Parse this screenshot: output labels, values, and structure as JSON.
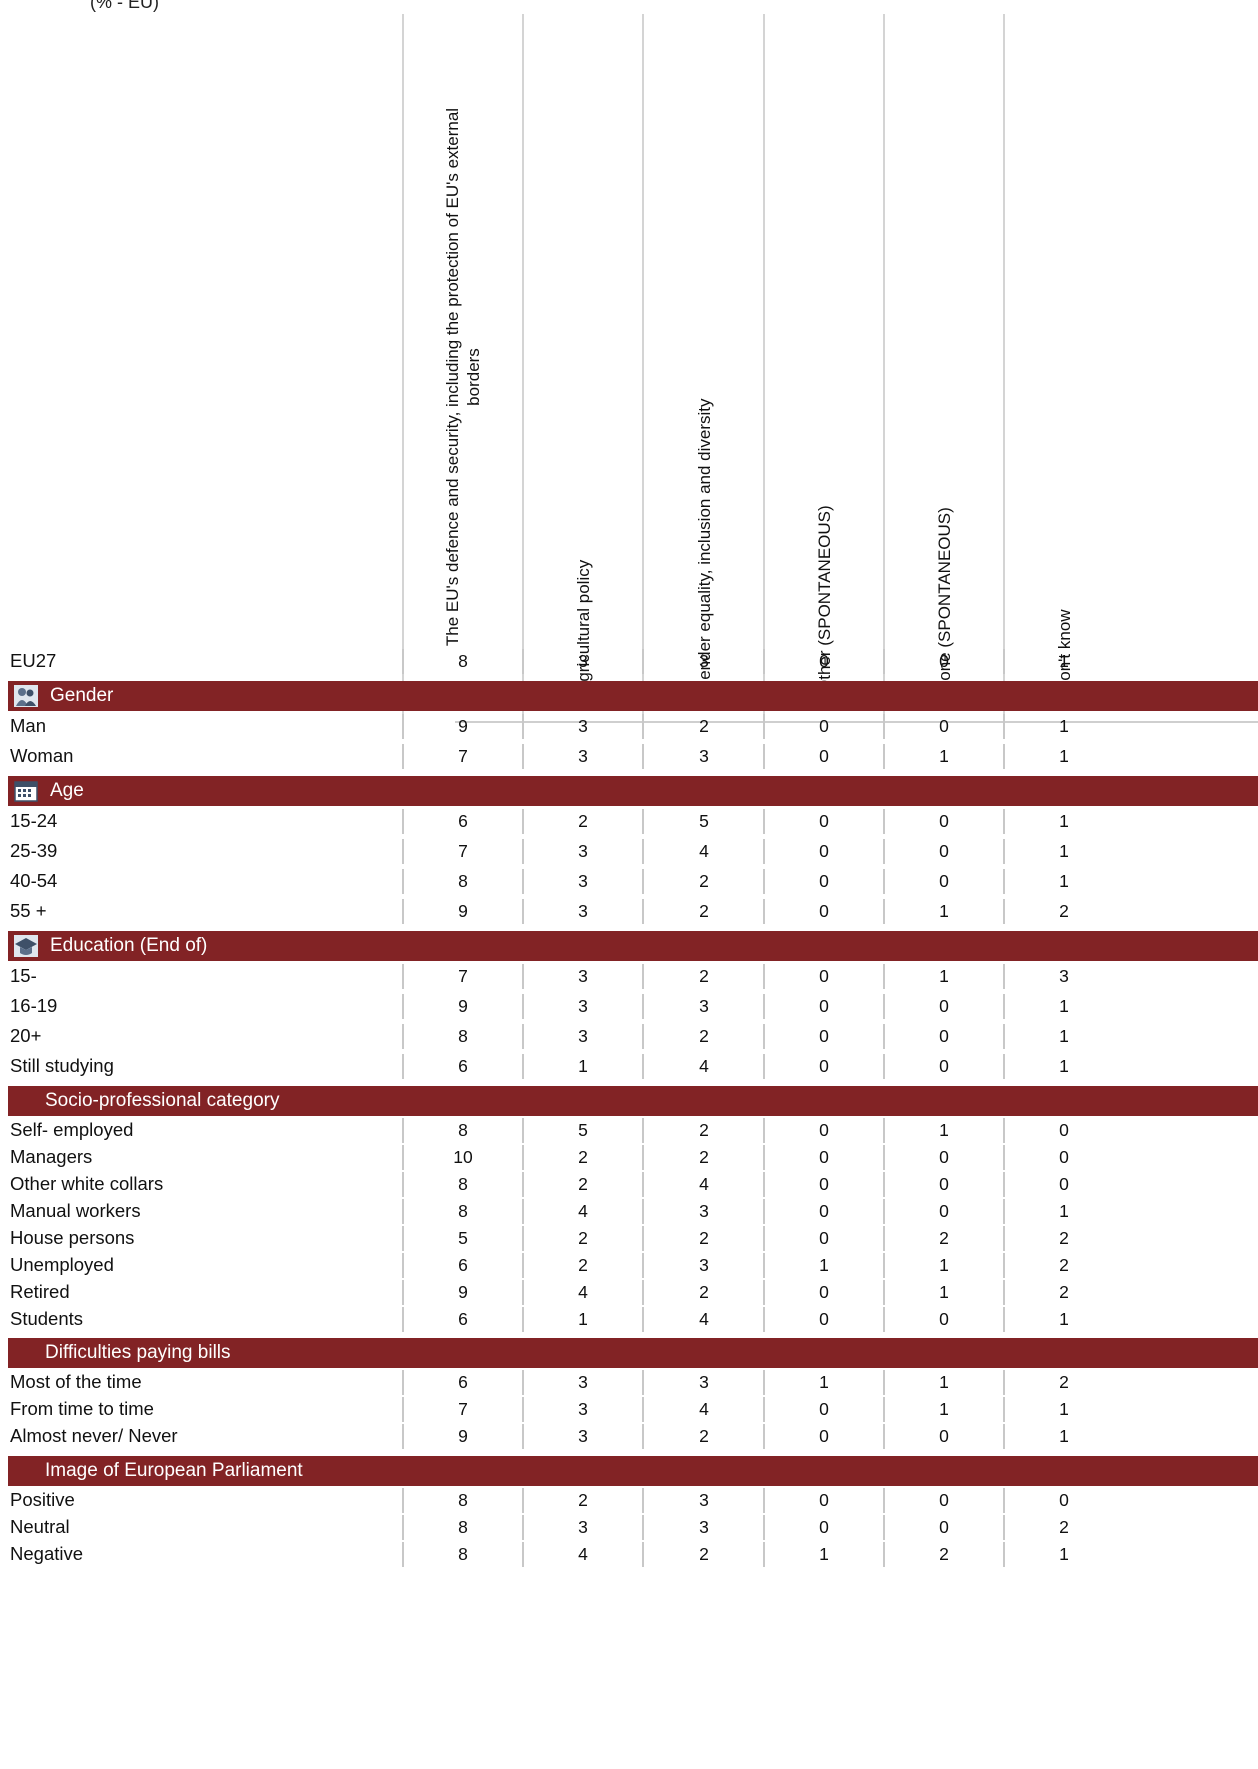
{
  "fragment_text": "(% - EU)",
  "columns": [
    {
      "label_lines": [
        "The EU's defence and security, including the protection of EU's external",
        "borders"
      ]
    },
    {
      "label_lines": [
        "Agricultural policy"
      ]
    },
    {
      "label_lines": [
        "Gender equality, inclusion and diversity"
      ]
    },
    {
      "label_lines": [
        "Other (SPONTANEOUS)"
      ]
    },
    {
      "label_lines": [
        "None (SPONTANEOUS)"
      ]
    },
    {
      "label_lines": [
        "Don't know"
      ]
    }
  ],
  "rows": [
    {
      "type": "row",
      "label": "EU27",
      "values": [
        "8",
        "3",
        "3",
        "0",
        "0",
        "1"
      ]
    },
    {
      "type": "section",
      "label": "Gender",
      "icon": "gender-icon"
    },
    {
      "type": "row",
      "label": "Man",
      "values": [
        "9",
        "3",
        "2",
        "0",
        "0",
        "1"
      ]
    },
    {
      "type": "row",
      "label": "Woman",
      "values": [
        "7",
        "3",
        "3",
        "0",
        "1",
        "1"
      ]
    },
    {
      "type": "section",
      "label": "Age",
      "icon": "calendar-icon"
    },
    {
      "type": "row",
      "label": "15-24",
      "values": [
        "6",
        "2",
        "5",
        "0",
        "0",
        "1"
      ]
    },
    {
      "type": "row",
      "label": "25-39",
      "values": [
        "7",
        "3",
        "4",
        "0",
        "0",
        "1"
      ]
    },
    {
      "type": "row",
      "label": "40-54",
      "values": [
        "8",
        "3",
        "2",
        "0",
        "0",
        "1"
      ]
    },
    {
      "type": "row",
      "label": "55 +",
      "values": [
        "9",
        "3",
        "2",
        "0",
        "1",
        "2"
      ]
    },
    {
      "type": "section",
      "label": "Education (End of)",
      "icon": "graduation-cap-icon"
    },
    {
      "type": "row",
      "label": "15-",
      "values": [
        "7",
        "3",
        "2",
        "0",
        "1",
        "3"
      ]
    },
    {
      "type": "row",
      "label": "16-19",
      "values": [
        "9",
        "3",
        "3",
        "0",
        "0",
        "1"
      ]
    },
    {
      "type": "row",
      "label": "20+",
      "values": [
        "8",
        "3",
        "2",
        "0",
        "0",
        "1"
      ]
    },
    {
      "type": "row",
      "label": "Still studying",
      "values": [
        "6",
        "1",
        "4",
        "0",
        "0",
        "1"
      ]
    },
    {
      "type": "section",
      "label": "Socio-professional category",
      "icon": ""
    },
    {
      "type": "row",
      "label": "Self- employed",
      "values": [
        "8",
        "5",
        "2",
        "0",
        "1",
        "0"
      ]
    },
    {
      "type": "row",
      "label": "Managers",
      "values": [
        "10",
        "2",
        "2",
        "0",
        "0",
        "0"
      ]
    },
    {
      "type": "row",
      "label": "Other white collars",
      "values": [
        "8",
        "2",
        "4",
        "0",
        "0",
        "0"
      ]
    },
    {
      "type": "row",
      "label": "Manual workers",
      "values": [
        "8",
        "4",
        "3",
        "0",
        "0",
        "1"
      ]
    },
    {
      "type": "row",
      "label": "House persons",
      "values": [
        "5",
        "2",
        "2",
        "0",
        "2",
        "2"
      ]
    },
    {
      "type": "row",
      "label": "Unemployed",
      "values": [
        "6",
        "2",
        "3",
        "1",
        "1",
        "2"
      ]
    },
    {
      "type": "row",
      "label": "Retired",
      "values": [
        "9",
        "4",
        "2",
        "0",
        "1",
        "2"
      ]
    },
    {
      "type": "row",
      "label": "Students",
      "values": [
        "6",
        "1",
        "4",
        "0",
        "0",
        "1"
      ]
    },
    {
      "type": "section",
      "label": "Difficulties paying bills",
      "icon": ""
    },
    {
      "type": "row",
      "label": "Most of the time",
      "values": [
        "6",
        "3",
        "3",
        "1",
        "1",
        "2"
      ]
    },
    {
      "type": "row",
      "label": "From time to time",
      "values": [
        "7",
        "3",
        "4",
        "0",
        "1",
        "1"
      ]
    },
    {
      "type": "row",
      "label": "Almost never/ Never",
      "values": [
        "9",
        "3",
        "2",
        "0",
        "0",
        "1"
      ]
    },
    {
      "type": "section",
      "label": "Image of European Parliament",
      "icon": ""
    },
    {
      "type": "row",
      "label": "Positive",
      "values": [
        "8",
        "2",
        "3",
        "0",
        "0",
        "0"
      ]
    },
    {
      "type": "row",
      "label": "Neutral",
      "values": [
        "8",
        "3",
        "3",
        "0",
        "0",
        "2"
      ]
    },
    {
      "type": "row",
      "label": "Negative",
      "values": [
        "8",
        "4",
        "2",
        "1",
        "2",
        "1"
      ]
    }
  ],
  "colors": {
    "section_band": "#822325",
    "separator": "#c8c8c8"
  }
}
